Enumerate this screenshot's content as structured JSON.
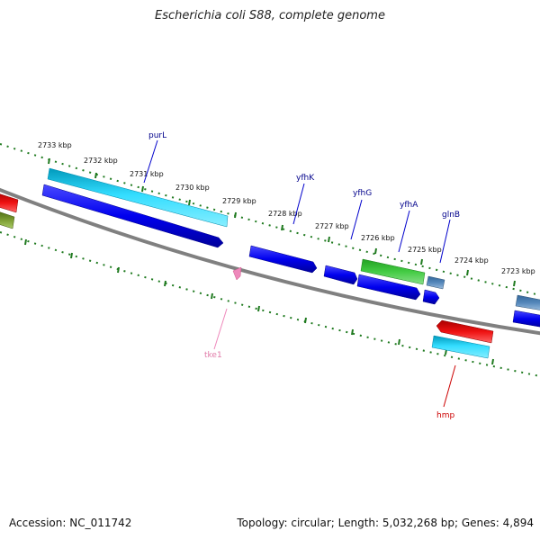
{
  "title": "Escherichia coli S88, complete genome",
  "footer": {
    "accession": "Accession: NC_011742",
    "summary": "Topology: circular; Length: 5,032,268 bp; Genes: 4,894"
  },
  "kbp_labels": [
    "2733 kbp",
    "2732 kbp",
    "2731 kbp",
    "2730 kbp",
    "2729 kbp",
    "2728 kbp",
    "2727 kbp",
    "2726 kbp",
    "2725 kbp",
    "2724 kbp",
    "2723 kbp"
  ],
  "gene_labels": [
    {
      "name": "purL",
      "color": "#00008b"
    },
    {
      "name": "yfhK",
      "color": "#00008b"
    },
    {
      "name": "yfhG",
      "color": "#00008b"
    },
    {
      "name": "yfhA",
      "color": "#00008b"
    },
    {
      "name": "glnB",
      "color": "#00008b"
    },
    {
      "name": "tke1",
      "color": "#e07aa8"
    },
    {
      "name": "hmp",
      "color": "#cc0000"
    }
  ],
  "colors": {
    "backbone": "#808080",
    "tick": "#1f7a1f",
    "blue": "#0000ee",
    "cyan": "#00ccee",
    "green": "#33bb33",
    "red": "#ee0000",
    "steel": "#4477aa",
    "olive": "#6b8e23",
    "pink": "#ee88bb"
  }
}
